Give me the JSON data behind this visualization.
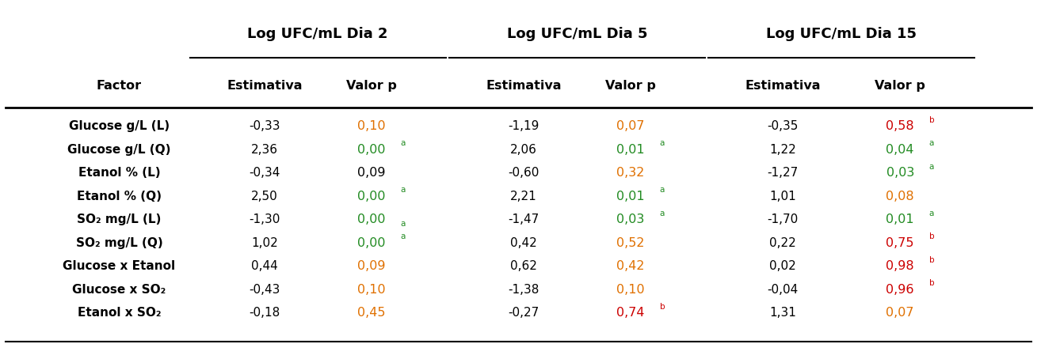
{
  "col_group_headers": [
    "Log UFC/mL Dia 2",
    "Log UFC/mL Dia 5",
    "Log UFC/mL Dia 15"
  ],
  "rows": [
    {
      "factor": "Glucose g/L (L)",
      "d2_est": "-0,33",
      "d2_vp": "0,10",
      "d2_vp_color": "orange",
      "d2_vp_sup": "",
      "d2_vp_sub": false,
      "d5_est": "-1,19",
      "d5_vp": "0,07",
      "d5_vp_color": "orange",
      "d5_vp_sup": "",
      "d5_vp_sub": false,
      "d15_est": "-0,35",
      "d15_vp": "0,58",
      "d15_vp_color": "red",
      "d15_vp_sup": "b",
      "d15_vp_sub": false
    },
    {
      "factor": "Glucose g/L (Q)",
      "d2_est": "2,36",
      "d2_vp": "0,00",
      "d2_vp_color": "green",
      "d2_vp_sup": "a",
      "d2_vp_sub": false,
      "d5_est": "2,06",
      "d5_vp": "0,01",
      "d5_vp_color": "green",
      "d5_vp_sup": "a",
      "d5_vp_sub": false,
      "d15_est": "1,22",
      "d15_vp": "0,04",
      "d15_vp_color": "green",
      "d15_vp_sup": "a",
      "d15_vp_sub": false
    },
    {
      "factor": "Etanol % (L)",
      "d2_est": "-0,34",
      "d2_vp": "0,09",
      "d2_vp_color": "black",
      "d2_vp_sup": "",
      "d2_vp_sub": false,
      "d5_est": "-0,60",
      "d5_vp": "0,32",
      "d5_vp_color": "orange",
      "d5_vp_sup": "",
      "d5_vp_sub": false,
      "d15_est": "-1,27",
      "d15_vp": "0,03",
      "d15_vp_color": "green",
      "d15_vp_sup": "a",
      "d15_vp_sub": false
    },
    {
      "factor": "Etanol % (Q)",
      "d2_est": "2,50",
      "d2_vp": "0,00",
      "d2_vp_color": "green",
      "d2_vp_sup": "a",
      "d2_vp_sub": false,
      "d5_est": "2,21",
      "d5_vp": "0,01",
      "d5_vp_color": "green",
      "d5_vp_sup": "a",
      "d5_vp_sub": false,
      "d15_est": "1,01",
      "d15_vp": "0,08",
      "d15_vp_color": "orange",
      "d15_vp_sup": "",
      "d15_vp_sub": false
    },
    {
      "factor": "SO₂ mg/L (L)",
      "d2_est": "-1,30",
      "d2_vp": "0,00",
      "d2_vp_color": "green",
      "d2_vp_sup": "a",
      "d2_vp_sub": true,
      "d5_est": "-1,47",
      "d5_vp": "0,03",
      "d5_vp_color": "green",
      "d5_vp_sup": "a",
      "d5_vp_sub": false,
      "d15_est": "-1,70",
      "d15_vp": "0,01",
      "d15_vp_color": "green",
      "d15_vp_sup": "a",
      "d15_vp_sub": false
    },
    {
      "factor": "SO₂ mg/L (Q)",
      "d2_est": "1,02",
      "d2_vp": "0,00",
      "d2_vp_color": "green",
      "d2_vp_sup": "a",
      "d2_vp_sub": false,
      "d5_est": "0,42",
      "d5_vp": "0,52",
      "d5_vp_color": "orange",
      "d5_vp_sup": "",
      "d5_vp_sub": false,
      "d15_est": "0,22",
      "d15_vp": "0,75",
      "d15_vp_color": "red",
      "d15_vp_sup": "b",
      "d15_vp_sub": false
    },
    {
      "factor": "Glucose x Etanol",
      "d2_est": "0,44",
      "d2_vp": "0,09",
      "d2_vp_color": "orange",
      "d2_vp_sup": "",
      "d2_vp_sub": false,
      "d5_est": "0,62",
      "d5_vp": "0,42",
      "d5_vp_color": "orange",
      "d5_vp_sup": "",
      "d5_vp_sub": false,
      "d15_est": "0,02",
      "d15_vp": "0,98",
      "d15_vp_color": "red",
      "d15_vp_sup": "b",
      "d15_vp_sub": false
    },
    {
      "factor": "Glucose x SO₂",
      "d2_est": "-0,43",
      "d2_vp": "0,10",
      "d2_vp_color": "orange",
      "d2_vp_sup": "",
      "d2_vp_sub": false,
      "d5_est": "-1,38",
      "d5_vp": "0,10",
      "d5_vp_color": "orange",
      "d5_vp_sup": "",
      "d5_vp_sub": false,
      "d15_est": "-0,04",
      "d15_vp": "0,96",
      "d15_vp_color": "red",
      "d15_vp_sup": "b",
      "d15_vp_sub": false
    },
    {
      "factor": "Etanol x SO₂",
      "d2_est": "-0,18",
      "d2_vp": "0,45",
      "d2_vp_color": "orange",
      "d2_vp_sup": "",
      "d2_vp_sub": false,
      "d5_est": "-0,27",
      "d5_vp": "0,74",
      "d5_vp_color": "red",
      "d5_vp_sup": "b",
      "d5_vp_sub": false,
      "d15_est": "1,31",
      "d15_vp": "0,07",
      "d15_vp_color": "orange",
      "d15_vp_sup": "",
      "d15_vp_sub": false
    }
  ],
  "color_map": {
    "green": "#228B22",
    "orange": "#E07000",
    "red": "#CC0000",
    "black": "#000000"
  }
}
